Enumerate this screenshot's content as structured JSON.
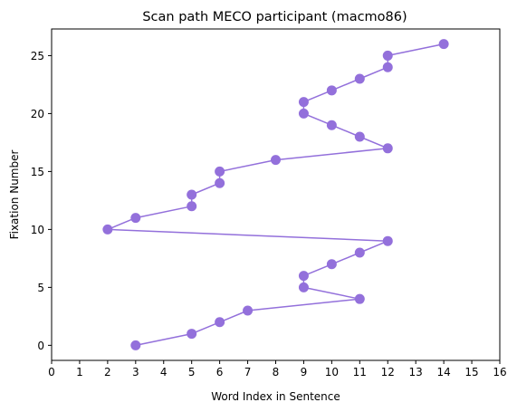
{
  "chart_data": {
    "type": "line",
    "title": "Scan path MECO participant (macmo86)",
    "xlabel": "Word Index in Sentence",
    "ylabel": "Fixation Number",
    "xlim": [
      0,
      16
    ],
    "ylim": [
      -1.3,
      27.3
    ],
    "xticks": [
      0,
      1,
      2,
      3,
      4,
      5,
      6,
      7,
      8,
      9,
      10,
      11,
      12,
      13,
      14,
      15,
      16
    ],
    "yticks": [
      0,
      5,
      10,
      15,
      20,
      25
    ],
    "grid": false,
    "legend": "none",
    "series": [
      {
        "color": "#9370db",
        "marker": "circle",
        "x": [
          3,
          5,
          6,
          7,
          11,
          9,
          9,
          10,
          11,
          12,
          2,
          3,
          5,
          5,
          6,
          6,
          8,
          12,
          11,
          10,
          9,
          9,
          10,
          11,
          12,
          12,
          14
        ],
        "y": [
          0,
          1,
          2,
          3,
          4,
          5,
          6,
          7,
          8,
          9,
          10,
          11,
          12,
          13,
          14,
          15,
          16,
          17,
          18,
          19,
          20,
          21,
          22,
          23,
          24,
          25,
          26
        ]
      }
    ]
  }
}
